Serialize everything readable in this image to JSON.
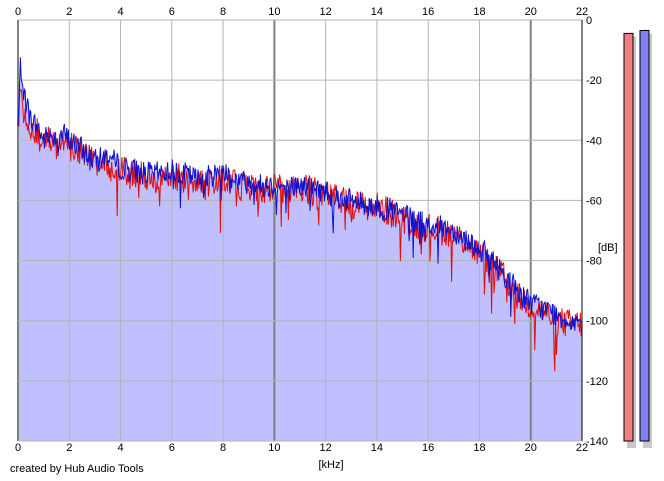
{
  "footer": {
    "credit": "created by Hub Audio Tools"
  },
  "chart_data": {
    "type": "area",
    "xlabel": "[kHz]",
    "ylabel": "[dB]",
    "xlim": [
      0,
      22
    ],
    "ylim": [
      -140,
      0
    ],
    "x_ticks": [
      0,
      2,
      4,
      6,
      8,
      10,
      12,
      14,
      16,
      18,
      20,
      22
    ],
    "y_ticks": [
      0,
      -20,
      -40,
      -60,
      -80,
      -100,
      -120,
      -140
    ],
    "x_tick_labels": [
      "0",
      "2",
      "4",
      "6",
      "8",
      "10",
      "12",
      "14",
      "16",
      "18",
      "20",
      "22"
    ],
    "y_tick_labels": [
      "0",
      "-20",
      "-40",
      "-60",
      "-80",
      "-100",
      "-120",
      "-140"
    ],
    "grid": true,
    "colors": {
      "left": "#e01010",
      "right": "#1010d0",
      "fill": "#c0c0ff",
      "grid": "#b4b4b4",
      "grid_major": "#808080",
      "meter_left": "#f08080",
      "meter_right": "#8080f0",
      "meter_shadow": "#c8c8c8"
    },
    "series": [
      {
        "id": "left",
        "x": [
          0,
          0.1,
          0.2,
          0.3,
          0.5,
          0.8,
          1.0,
          1.2,
          1.5,
          1.8,
          2.0,
          2.5,
          3.0,
          3.5,
          4.0,
          4.5,
          5.0,
          5.5,
          6.0,
          6.5,
          7.0,
          7.5,
          8.0,
          8.5,
          9.0,
          9.5,
          10.0,
          10.5,
          11.0,
          11.5,
          12.0,
          12.5,
          13.0,
          13.5,
          14.0,
          14.5,
          15.0,
          15.5,
          16.0,
          16.5,
          17.0,
          17.5,
          18.0,
          18.5,
          19.0,
          19.5,
          20.0,
          20.5,
          21.0,
          21.5,
          22.0
        ],
        "y": [
          -38,
          -20,
          -26,
          -30,
          -35,
          -38,
          -42,
          -40,
          -41,
          -40,
          -42,
          -44,
          -48,
          -48,
          -50,
          -51,
          -52,
          -53,
          -52,
          -53,
          -54,
          -54,
          -52,
          -55,
          -56,
          -57,
          -56,
          -57,
          -56,
          -57,
          -58,
          -60,
          -61,
          -62,
          -62,
          -64,
          -66,
          -68,
          -69,
          -70,
          -71,
          -74,
          -78,
          -82,
          -86,
          -92,
          -95,
          -97,
          -100,
          -101,
          -101
        ]
      },
      {
        "id": "right",
        "x": [
          0,
          0.1,
          0.2,
          0.3,
          0.5,
          0.8,
          1.0,
          1.2,
          1.5,
          1.8,
          2.0,
          2.5,
          3.0,
          3.5,
          4.0,
          4.5,
          5.0,
          5.5,
          6.0,
          6.5,
          7.0,
          7.5,
          8.0,
          8.5,
          9.0,
          9.5,
          10.0,
          10.5,
          11.0,
          11.5,
          12.0,
          12.5,
          13.0,
          13.5,
          14.0,
          14.5,
          15.0,
          15.5,
          16.0,
          16.5,
          17.0,
          17.5,
          18.0,
          18.5,
          19.0,
          19.5,
          20.0,
          20.5,
          21.0,
          21.5,
          22.0
        ],
        "y": [
          -36,
          -14,
          -22,
          -27,
          -33,
          -36,
          -40,
          -38,
          -39,
          -38,
          -40,
          -43,
          -47,
          -45,
          -49,
          -50,
          -51,
          -51,
          -50,
          -51,
          -53,
          -52,
          -50,
          -53,
          -54,
          -55,
          -55,
          -56,
          -55,
          -56,
          -57,
          -59,
          -60,
          -61,
          -62,
          -63,
          -65,
          -67,
          -68,
          -69,
          -70,
          -73,
          -76,
          -80,
          -85,
          -90,
          -94,
          -96,
          -98,
          -100,
          -100
        ]
      }
    ],
    "fill_series": "right",
    "meters": [
      {
        "channel": "left",
        "level_db": -2.5
      },
      {
        "channel": "right",
        "level_db": -1.5
      }
    ]
  }
}
